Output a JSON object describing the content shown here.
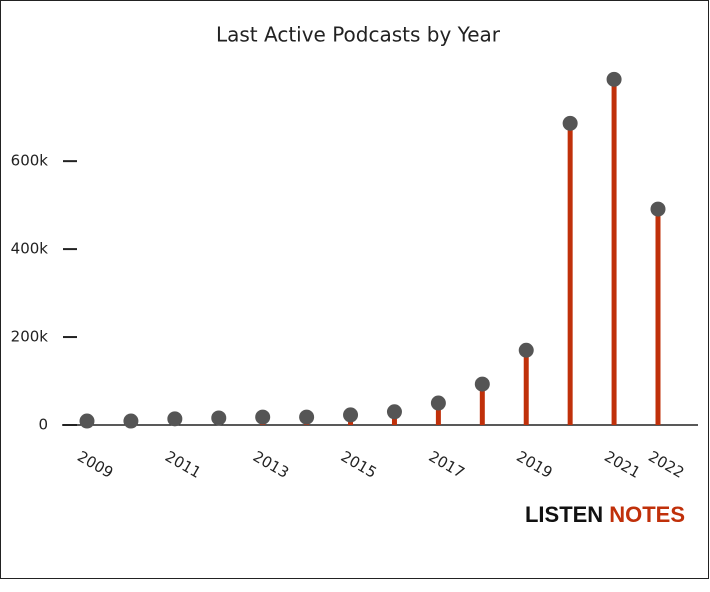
{
  "chart_data": {
    "type": "lollipop",
    "title": "Last Active Podcasts by Year",
    "categories": [
      "2009",
      null,
      "2011",
      null,
      "2013",
      null,
      "2015",
      null,
      "2017",
      null,
      "2019",
      null,
      "2021",
      "2022"
    ],
    "values": [
      9000,
      9000,
      14000,
      16000,
      18000,
      18000,
      23000,
      30000,
      50000,
      93000,
      170000,
      686000,
      786000,
      491000
    ],
    "color": "#c0300a",
    "dot_color": "#555555",
    "ylim": [
      0,
      830000
    ],
    "yticks": [
      0,
      {
        "value": 200000,
        "label": "200k"
      },
      {
        "value": 400000,
        "label": "400k"
      },
      {
        "value": 600000,
        "label": "600k"
      }
    ]
  },
  "logo": {
    "first": "LISTEN",
    "second": "NOTES"
  }
}
